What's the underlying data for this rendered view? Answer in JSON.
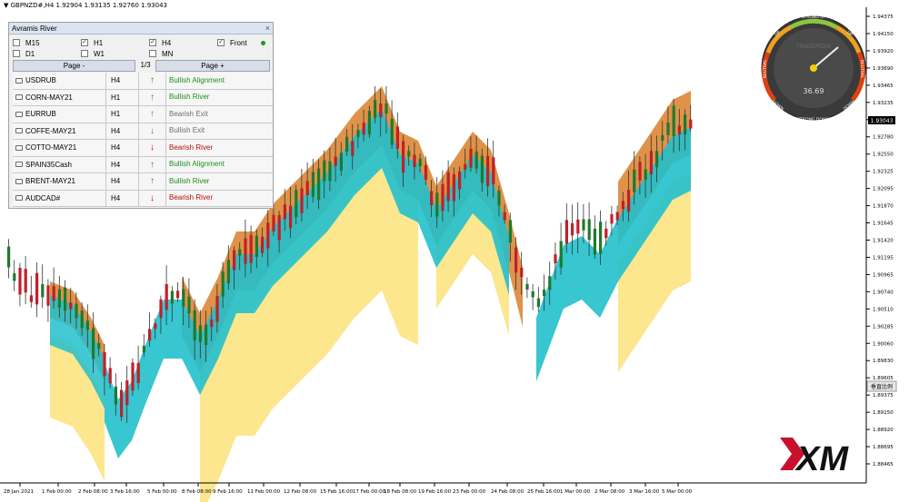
{
  "header": {
    "title": "▼ GBPNZD#,H4  1.92904 1.93135 1.92760 1.93043"
  },
  "panel": {
    "title": "Avramis River",
    "close_label": "×",
    "timeframes": [
      {
        "label": "M15",
        "checked": false
      },
      {
        "label": "H1",
        "checked": true
      },
      {
        "label": "H4",
        "checked": true
      },
      {
        "label": "Front",
        "checked": true
      },
      {
        "label": "D1",
        "checked": false
      },
      {
        "label": "W1",
        "checked": false
      },
      {
        "label": "MN",
        "checked": false
      }
    ],
    "page_prev": "Page -",
    "page_num": "1/3",
    "page_next": "Page +",
    "rows": [
      {
        "symbol": "USDRUB",
        "tf": "H4",
        "arrow": "↑",
        "status": "Bullish Alignment",
        "kind": "bull"
      },
      {
        "symbol": "CORN-MAY21",
        "tf": "H1",
        "arrow": "↑",
        "status": "Bullish River",
        "kind": "bull"
      },
      {
        "symbol": "EURRUB",
        "tf": "H1",
        "arrow": "↑",
        "status": "Bearish Exit",
        "kind": "exit"
      },
      {
        "symbol": "COFFE-MAY21",
        "tf": "H4",
        "arrow": "↓",
        "status": "Bullish Exit",
        "kind": "exit"
      },
      {
        "symbol": "COTTO-MAY21",
        "tf": "H4",
        "arrow": "↓",
        "status": "Bearish River",
        "kind": "bear"
      },
      {
        "symbol": "SPAIN35Cash",
        "tf": "H4",
        "arrow": "↑",
        "status": "Bullish Alignment",
        "kind": "bull"
      },
      {
        "symbol": "BRENT-MAY21",
        "tf": "H4",
        "arrow": "↑",
        "status": "Bullish River",
        "kind": "bull"
      },
      {
        "symbol": "AUDCAD#",
        "tf": "H4",
        "arrow": "↓",
        "status": "Bearish River",
        "kind": "bear"
      }
    ]
  },
  "gauge": {
    "value": "36.69",
    "brand": "TRADEPEDIA",
    "labels": {
      "strong_up": "STRONG UP",
      "up": "UP",
      "down_left": "DOWN",
      "down_right": "DOWN",
      "neutral_left": "NEUTRAL",
      "neutral_right": "NEUTRAL",
      "strong_down": "STRONG DOWN"
    }
  },
  "price_axis": {
    "ticks": [
      "1.94375",
      "1.94150",
      "1.93920",
      "1.93690",
      "1.93465",
      "1.93235",
      "1.93005",
      "1.92780",
      "1.92550",
      "1.92325",
      "1.92095",
      "1.91870",
      "1.91645",
      "1.91420",
      "1.91195",
      "1.90965",
      "1.90740",
      "1.90510",
      "1.90285",
      "1.90060",
      "1.89830",
      "1.89605",
      "1.89375",
      "1.89150",
      "1.88920",
      "1.88695",
      "1.88465"
    ],
    "current": "1.93043"
  },
  "time_axis": {
    "ticks": [
      "28 Jan 2021",
      "1 Feb 00:00",
      "2 Feb 08:00",
      "3 Feb 16:00",
      "5 Feb 00:00",
      "8 Feb 08:00",
      "9 Feb 16:00",
      "11 Feb 00:00",
      "12 Feb 08:00",
      "15 Feb 16:00",
      "17 Feb 00:00",
      "18 Feb 08:00",
      "19 Feb 16:00",
      "23 Feb 00:00",
      "24 Feb 08:00",
      "25 Feb 16:00",
      "1 Mar 00:00",
      "2 Mar 08:00",
      "3 Mar 16:00",
      "5 Mar 00:00"
    ]
  },
  "side_button": "垂直比例",
  "logo": "XM",
  "colors": {
    "bull_candle": "#1e7a2e",
    "bear_candle": "#c0202a",
    "river_cyan": "#22c0cc",
    "river_orange": "#d9802a",
    "river_yellow": "#fbe27a"
  }
}
